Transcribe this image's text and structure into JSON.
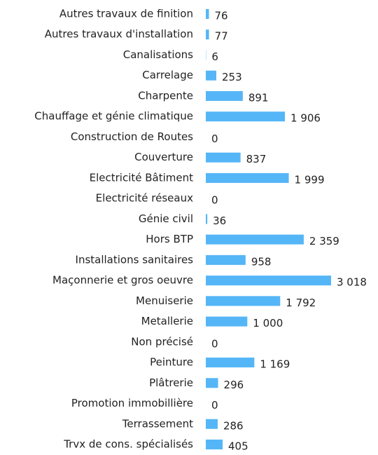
{
  "chart_data": {
    "type": "bar",
    "orientation": "horizontal",
    "color": "#55b6f7",
    "categories": [
      "Autres travaux de finition",
      "Autres travaux d'installation",
      "Canalisations",
      "Carrelage",
      "Charpente",
      "Chauffage et génie climatique",
      "Construction de Routes",
      "Couverture",
      "Electricité Bâtiment",
      "Electricité réseaux",
      "Génie civil",
      "Hors BTP",
      "Installations sanitaires",
      "Maçonnerie et gros oeuvre",
      "Menuiserie",
      "Metallerie",
      "Non précisé",
      "Peinture",
      "Plâtrerie",
      "Promotion immobillière",
      "Terrassement",
      "Trvx de cons. spécialisés"
    ],
    "values": [
      76,
      77,
      6,
      253,
      891,
      1906,
      0,
      837,
      1999,
      0,
      36,
      2359,
      958,
      3018,
      1792,
      1000,
      0,
      1169,
      296,
      0,
      286,
      405
    ],
    "value_labels": [
      "76",
      "77",
      "6",
      "253",
      "891",
      "1 906",
      "0",
      "837",
      "1 999",
      "0",
      "36",
      "2 359",
      "958",
      "3 018",
      "1 792",
      "1 000",
      "0",
      "1 169",
      "296",
      "0",
      "286",
      "405"
    ]
  }
}
